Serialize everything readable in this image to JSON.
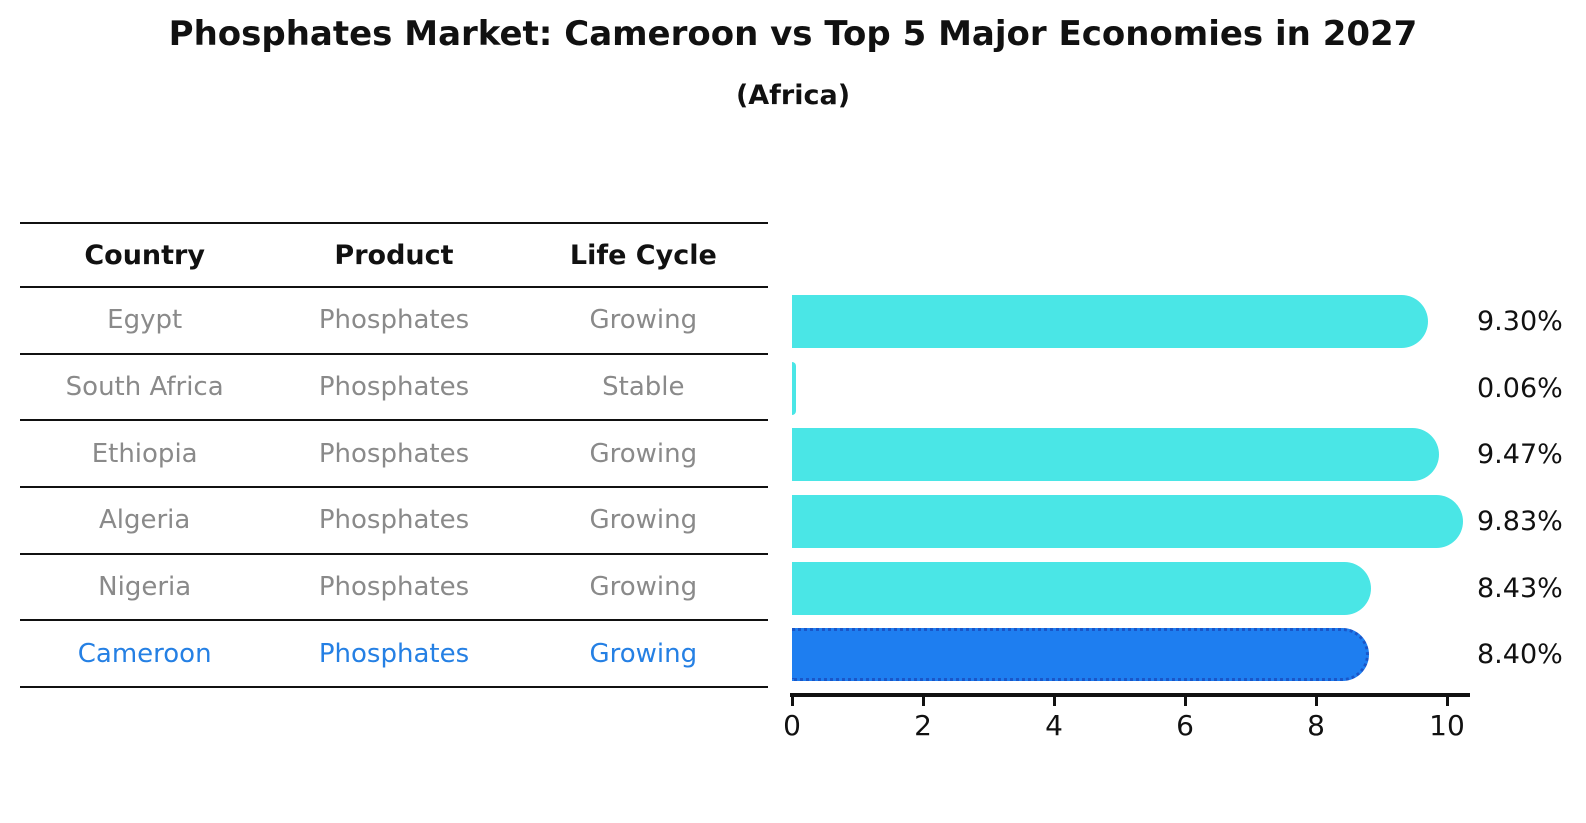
{
  "title": "Phosphates Market: Cameroon vs Top 5 Major Economies in 2027",
  "subtitle": "(Africa)",
  "table": {
    "headers": [
      "Country",
      "Product",
      "Life Cycle"
    ],
    "rows": [
      {
        "country": "Egypt",
        "product": "Phosphates",
        "life_cycle": "Growing"
      },
      {
        "country": "South Africa",
        "product": "Phosphates",
        "life_cycle": "Stable"
      },
      {
        "country": "Ethiopia",
        "product": "Phosphates",
        "life_cycle": "Growing"
      },
      {
        "country": "Algeria",
        "product": "Phosphates",
        "life_cycle": "Growing"
      },
      {
        "country": "Nigeria",
        "product": "Phosphates",
        "life_cycle": "Growing"
      },
      {
        "country": "Cameroon",
        "product": "Phosphates",
        "life_cycle": "Growing"
      }
    ]
  },
  "chart_data": {
    "type": "bar",
    "orientation": "horizontal",
    "title": "Phosphates Market: Cameroon vs Top 5 Major Economies in 2027",
    "subtitle": "(Africa)",
    "categories": [
      "Egypt",
      "South Africa",
      "Ethiopia",
      "Algeria",
      "Nigeria",
      "Cameroon"
    ],
    "values": [
      9.3,
      0.06,
      9.47,
      9.83,
      8.43,
      8.4
    ],
    "value_labels": [
      "9.30%",
      "0.06%",
      "9.47%",
      "9.83%",
      "8.43%",
      "8.40%"
    ],
    "xlabel": "",
    "ylabel": "",
    "xlim": [
      0,
      10
    ],
    "xticks": [
      "0",
      "2",
      "4",
      "6",
      "8",
      "10"
    ],
    "grid": false,
    "legend": false,
    "highlight_index": 5,
    "bar_color": "#4ae6e6",
    "highlight_bar_color": "#1e7ef0",
    "highlight_border_color": "#1a56c8",
    "highlight_text_color": "#2580e4",
    "row_text_color": "#8a8a8a",
    "header_text_color": "#111111"
  }
}
